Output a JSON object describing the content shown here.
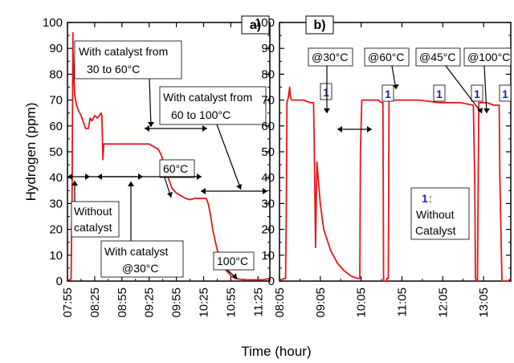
{
  "chart_data": [
    {
      "type": "line",
      "panel_label": "a)",
      "ylabel": "Hydrogen (ppm)",
      "xlabel": "Time (hour)",
      "ylim": [
        0,
        100
      ],
      "xlim": [
        "07:55",
        "11:38"
      ],
      "y_ticks": [
        "0",
        "10",
        "20",
        "30",
        "40",
        "50",
        "60",
        "70",
        "80",
        "90",
        "100"
      ],
      "x_ticks": [
        "07:55",
        "08:25",
        "08:55",
        "09:25",
        "09:55",
        "10:25",
        "10:55",
        "11:25"
      ],
      "line_color": "#e8141a",
      "series": [
        {
          "x": [
            "07:55",
            "07:58",
            "07:59",
            "08:00",
            "08:01",
            "08:01",
            "08:02",
            "08:03",
            "08:05",
            "08:07",
            "08:10",
            "08:12",
            "08:14",
            "08:15",
            "08:18",
            "08:20",
            "08:22",
            "08:25",
            "08:28",
            "08:30",
            "08:32",
            "08:33",
            "08:34",
            "08:35",
            "08:36",
            "08:38",
            "08:40",
            "08:45",
            "08:55",
            "09:05",
            "09:15",
            "09:25",
            "09:30",
            "09:35",
            "09:38",
            "09:42",
            "09:45",
            "09:48",
            "09:50",
            "09:55",
            "10:00",
            "10:05",
            "10:10",
            "10:15",
            "10:20",
            "10:25",
            "10:28",
            "10:30",
            "10:33",
            "10:35",
            "10:40",
            "10:45",
            "10:50",
            "10:53",
            "10:55",
            "11:00",
            "11:10",
            "11:20",
            "11:30",
            "11:38"
          ],
          "y": [
            0.5,
            0.5,
            1,
            30,
            96,
            90,
            80,
            72,
            68,
            66,
            64,
            62,
            60,
            59,
            59,
            63,
            62,
            64,
            63,
            64,
            65,
            64,
            47,
            53,
            53,
            53,
            53,
            53,
            53,
            53,
            53,
            53,
            52,
            51,
            49,
            45,
            41,
            38,
            36,
            34,
            33,
            32,
            31.5,
            32,
            32,
            32,
            32,
            30,
            25,
            20,
            12,
            7,
            4,
            3,
            2,
            1,
            0.5,
            0.5,
            0.5,
            1
          ]
        }
      ],
      "annotations": [
        "With catalyst from 30 to 60°C",
        "With catalyst from 60 to 100°C",
        "Without catalyst",
        "With catalyst @30°C",
        "60°C",
        "100°C"
      ]
    },
    {
      "type": "line",
      "panel_label": "b)",
      "ylim": [
        0,
        100
      ],
      "xlim": [
        "08:05",
        "13:45"
      ],
      "y_ticks": [
        "0",
        "10",
        "20",
        "30",
        "40",
        "50",
        "60",
        "70",
        "80",
        "90",
        "100"
      ],
      "x_ticks": [
        "08:05",
        "09:05",
        "10:05",
        "11:05",
        "12:05",
        "13:05"
      ],
      "line_color": "#e8141a",
      "series": [
        {
          "x": [
            "08:05",
            "08:14",
            "08:15",
            "08:16",
            "08:18",
            "08:20",
            "08:21",
            "08:23",
            "08:25",
            "08:30",
            "08:40",
            "08:50",
            "08:55",
            "08:56",
            "08:58",
            "08:59",
            "09:00",
            "09:05",
            "09:10",
            "09:20",
            "09:30",
            "09:40",
            "09:50",
            "10:00",
            "10:03",
            "10:04",
            "10:06",
            "10:08",
            "10:10",
            "10:20",
            "10:30",
            "10:35",
            "10:37",
            "10:38",
            "10:42",
            "10:43",
            "10:45",
            "10:46",
            "11:00",
            "11:30",
            "12:00",
            "12:30",
            "12:50",
            "12:52",
            "12:53",
            "12:55",
            "12:56",
            "12:58",
            "13:00",
            "13:10",
            "13:20",
            "13:28",
            "13:29",
            "13:32",
            "13:40",
            "13:41",
            "13:45"
          ],
          "y": [
            0.5,
            1,
            27,
            69,
            71,
            75,
            71,
            70,
            70,
            70,
            70,
            69,
            69,
            55,
            13,
            30,
            46,
            30,
            20,
            12,
            7,
            4,
            2,
            1,
            1,
            50,
            70,
            70,
            70,
            70,
            70,
            69,
            69,
            0,
            0,
            1,
            1,
            70,
            70,
            70,
            69,
            69,
            68,
            40,
            1,
            0,
            0,
            69,
            69,
            69,
            68,
            68,
            40,
            0,
            0,
            0,
            1
          ]
        }
      ],
      "annotations": [
        "@30°C",
        "@60°C",
        "@45°C",
        "@100°C",
        "1",
        "1",
        "1",
        "1",
        "1",
        "1",
        ":",
        "Without",
        "Catalyst"
      ]
    }
  ]
}
